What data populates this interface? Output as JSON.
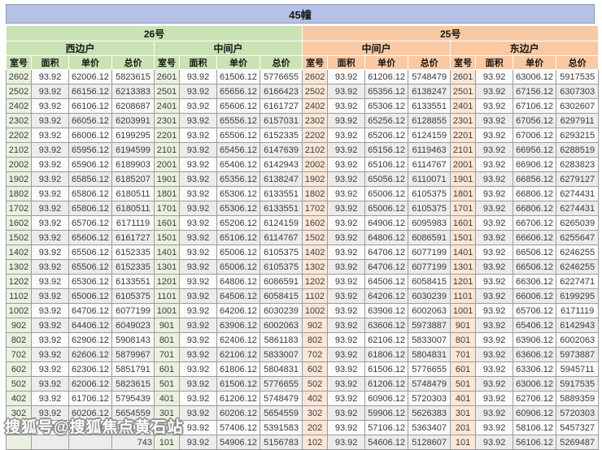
{
  "title": "45幢",
  "watermark": "搜狐号@搜狐焦点黄石站",
  "sections": [
    {
      "name": "26号",
      "units": [
        "西边户",
        "中间户"
      ]
    },
    {
      "name": "25号",
      "units": [
        "中间户",
        "东边户"
      ]
    }
  ],
  "columns": [
    "室号",
    "面积",
    "单价",
    "总价"
  ],
  "colors": {
    "title_bar": "#b5c2e6",
    "building_26_header": "#c9e3b4",
    "building_25_header": "#f8c9a3",
    "room_cell_green": "#e9f2df",
    "room_cell_orange": "#fbe7d8",
    "alt_row": "#ececec"
  },
  "rows": [
    [
      "2602",
      "93.92",
      "62006.12",
      "5823615",
      "2601",
      "93.92",
      "61506.12",
      "5776655",
      "2602",
      "93.92",
      "61206.12",
      "5748479",
      "2601",
      "93.92",
      "63006.12",
      "5917535"
    ],
    [
      "2502",
      "93.92",
      "66156.12",
      "6213383",
      "2501",
      "93.92",
      "65656.12",
      "6166423",
      "2502",
      "93.92",
      "65356.12",
      "6138247",
      "2501",
      "93.92",
      "67156.12",
      "6307303"
    ],
    [
      "2402",
      "93.92",
      "66106.12",
      "6208687",
      "2401",
      "93.92",
      "65606.12",
      "6161727",
      "2402",
      "93.92",
      "65306.12",
      "6133551",
      "2401",
      "93.92",
      "67106.12",
      "6302607"
    ],
    [
      "2302",
      "93.92",
      "66056.12",
      "6203991",
      "2301",
      "93.92",
      "65556.12",
      "6157031",
      "2302",
      "93.92",
      "65256.12",
      "6128855",
      "2301",
      "93.92",
      "67056.12",
      "6297911"
    ],
    [
      "2202",
      "93.92",
      "66006.12",
      "6199295",
      "2201",
      "93.92",
      "65506.12",
      "6152335",
      "2202",
      "93.92",
      "65206.12",
      "6124159",
      "2201",
      "93.92",
      "67006.12",
      "6293215"
    ],
    [
      "2102",
      "93.92",
      "65956.12",
      "6194599",
      "2101",
      "93.92",
      "65456.12",
      "6147639",
      "2102",
      "93.92",
      "65156.12",
      "6119463",
      "2101",
      "93.92",
      "66956.12",
      "6288519"
    ],
    [
      "2002",
      "93.92",
      "65906.12",
      "6189903",
      "2001",
      "93.92",
      "65406.12",
      "6142943",
      "2002",
      "93.92",
      "65106.12",
      "6114767",
      "2001",
      "93.92",
      "66906.12",
      "6283823"
    ],
    [
      "1902",
      "93.92",
      "65856.12",
      "6185207",
      "1901",
      "93.92",
      "65356.12",
      "6138247",
      "1902",
      "93.92",
      "65056.12",
      "6110071",
      "1901",
      "93.92",
      "66856.12",
      "6279127"
    ],
    [
      "1802",
      "93.92",
      "65806.12",
      "6180511",
      "1801",
      "93.92",
      "65306.12",
      "6133551",
      "1802",
      "93.92",
      "65006.12",
      "6105375",
      "1801",
      "93.92",
      "66806.12",
      "6274431"
    ],
    [
      "1702",
      "93.92",
      "65806.12",
      "6180511",
      "1701",
      "93.92",
      "65306.12",
      "6133551",
      "1702",
      "93.92",
      "65006.12",
      "6105375",
      "1701",
      "93.92",
      "66806.12",
      "6274431"
    ],
    [
      "1602",
      "93.92",
      "65706.12",
      "6171119",
      "1601",
      "93.92",
      "65206.12",
      "6124159",
      "1602",
      "93.92",
      "64906.12",
      "6095983",
      "1601",
      "93.92",
      "66706.12",
      "6265039"
    ],
    [
      "1502",
      "93.92",
      "65606.12",
      "6161727",
      "1501",
      "93.92",
      "65106.12",
      "6114767",
      "1502",
      "93.92",
      "64806.12",
      "6086591",
      "1501",
      "93.92",
      "66606.12",
      "6255647"
    ],
    [
      "1402",
      "93.92",
      "65506.12",
      "6152335",
      "1401",
      "93.92",
      "65006.12",
      "6105375",
      "1402",
      "93.92",
      "64706.12",
      "6077199",
      "1401",
      "93.92",
      "66506.12",
      "6246255"
    ],
    [
      "1302",
      "93.92",
      "65506.12",
      "6152335",
      "1301",
      "93.92",
      "65006.12",
      "6105375",
      "1302",
      "93.92",
      "64706.12",
      "6077199",
      "1301",
      "93.92",
      "66506.12",
      "6246255"
    ],
    [
      "1202",
      "93.92",
      "65306.12",
      "6133551",
      "1201",
      "93.92",
      "64806.12",
      "6086591",
      "1202",
      "93.92",
      "64506.12",
      "6058415",
      "1201",
      "93.92",
      "66306.12",
      "6227471"
    ],
    [
      "1102",
      "93.92",
      "65006.12",
      "6105375",
      "1101",
      "93.92",
      "64506.12",
      "6058415",
      "1102",
      "93.92",
      "64206.12",
      "6030239",
      "1101",
      "93.92",
      "66006.12",
      "6199295"
    ],
    [
      "1002",
      "93.92",
      "64706.12",
      "6077199",
      "1001",
      "93.92",
      "64206.12",
      "6030239",
      "1002",
      "93.92",
      "63906.12",
      "6002063",
      "1001",
      "93.92",
      "65706.12",
      "6171119"
    ],
    [
      "902",
      "93.92",
      "64406.12",
      "6049023",
      "901",
      "93.92",
      "63906.12",
      "6002063",
      "902",
      "93.92",
      "63606.12",
      "5973887",
      "901",
      "93.92",
      "65406.12",
      "6142943"
    ],
    [
      "802",
      "93.92",
      "62906.12",
      "5908143",
      "801",
      "93.92",
      "62406.12",
      "5861183",
      "802",
      "93.92",
      "62106.12",
      "5833007",
      "801",
      "93.92",
      "63906.12",
      "6002063"
    ],
    [
      "702",
      "93.92",
      "62606.12",
      "5879967",
      "701",
      "93.92",
      "62106.12",
      "5833007",
      "702",
      "93.92",
      "61806.12",
      "5804831",
      "701",
      "93.92",
      "63606.12",
      "5973887"
    ],
    [
      "602",
      "93.92",
      "62306.12",
      "5851791",
      "601",
      "93.92",
      "61806.12",
      "5804831",
      "602",
      "93.92",
      "61506.12",
      "5776655",
      "601",
      "93.92",
      "63306.12",
      "5945711"
    ],
    [
      "502",
      "93.92",
      "62006.12",
      "5823615",
      "501",
      "93.92",
      "61506.12",
      "5776655",
      "502",
      "93.92",
      "61206.12",
      "5748479",
      "501",
      "93.92",
      "63006.12",
      "5917535"
    ],
    [
      "402",
      "93.92",
      "61706.12",
      "5795439",
      "401",
      "93.92",
      "61206.12",
      "5748479",
      "402",
      "93.92",
      "60906.12",
      "5720303",
      "401",
      "93.92",
      "62706.12",
      "5889359"
    ],
    [
      "302",
      "93.92",
      "60206.12",
      "5654559",
      "301",
      "93.92",
      "60206.12",
      "5654559",
      "302",
      "93.92",
      "59906.12",
      "5626383",
      "301",
      "93.92",
      "60906.12",
      "5720303"
    ],
    [
      "202",
      "93.92",
      "57406.12",
      "5391583",
      "201",
      "93.92",
      "57406.12",
      "5391583",
      "202",
      "93.92",
      "57106.12",
      "5363407",
      "201",
      "93.92",
      "58106.12",
      "5457327"
    ],
    [
      "",
      "",
      "",
      "743",
      "101",
      "93.92",
      "54906.12",
      "5156783",
      "102",
      "93.92",
      "54606.12",
      "5128607",
      "101",
      "93.92",
      "56106.12",
      "5269487"
    ]
  ]
}
